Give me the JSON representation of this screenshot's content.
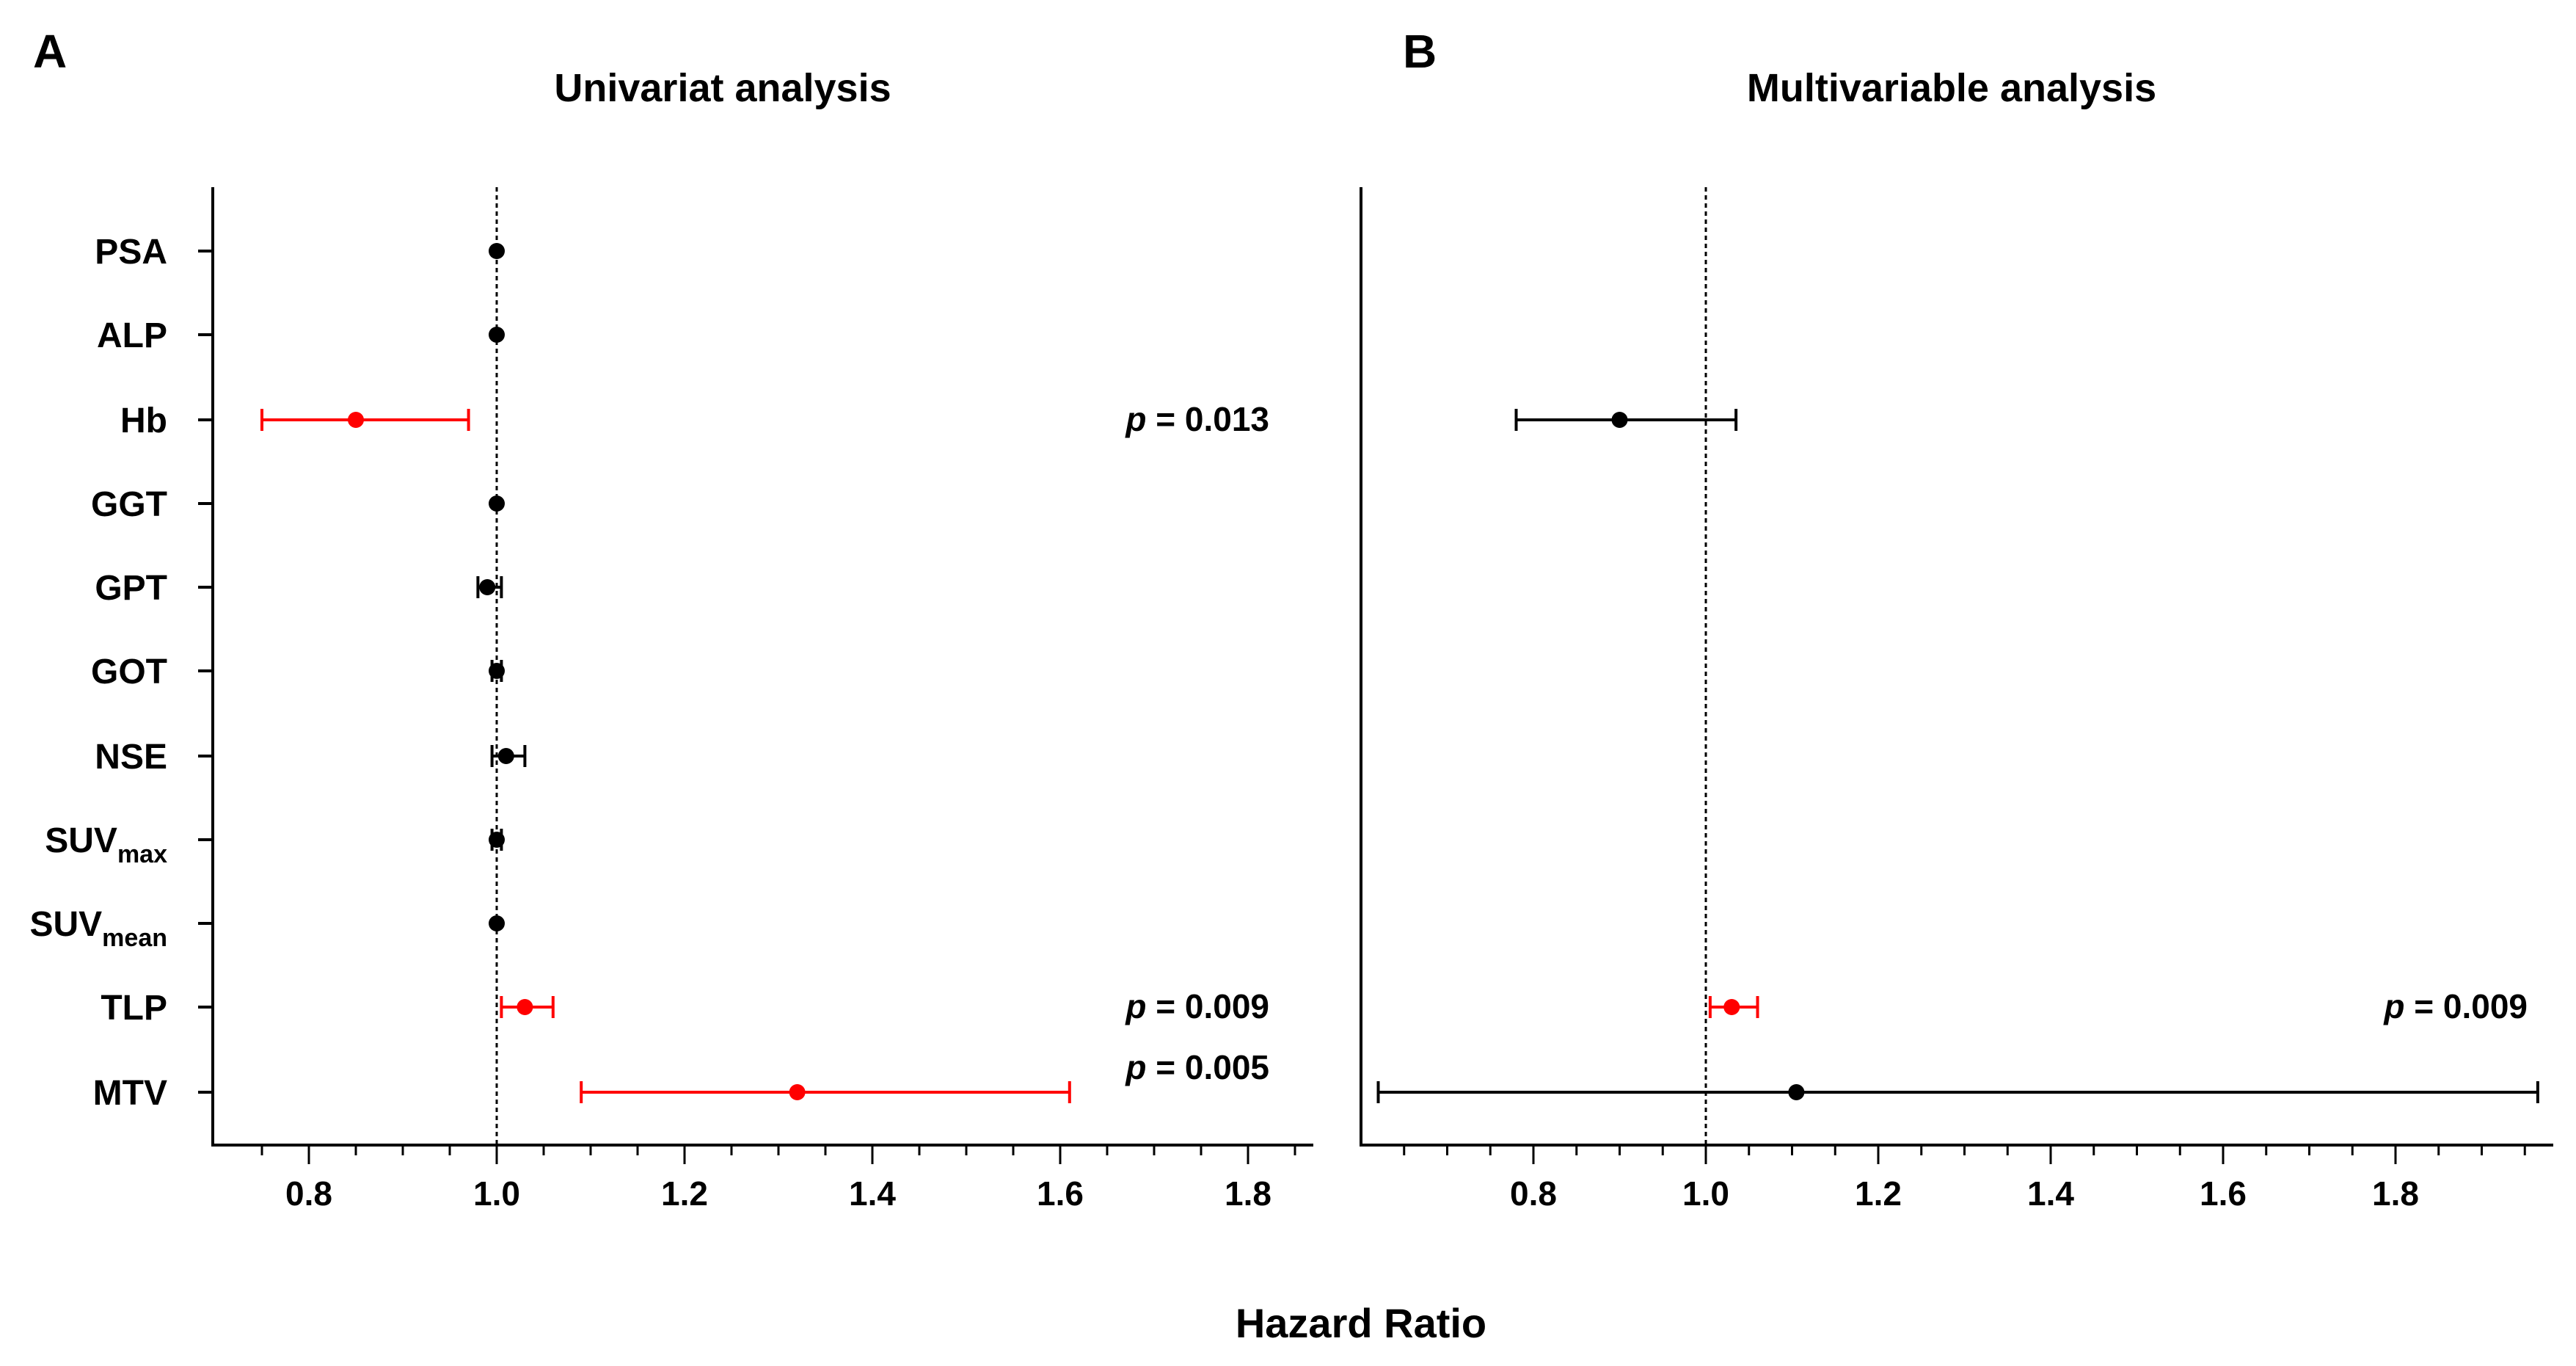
{
  "figure": {
    "xlabel": "Hazard Ratio",
    "colors": {
      "significant": "#ff0000",
      "default": "#000000"
    }
  },
  "chart_data": [
    {
      "type": "forest",
      "panel_letter": "A",
      "title": "Univariat analysis",
      "xlabel": "Hazard Ratio",
      "xlim": [
        0.7,
        1.85
      ],
      "xticks": [
        0.8,
        1.0,
        1.2,
        1.4,
        1.6,
        1.8
      ],
      "xtick_labels": [
        "0.8",
        "1.0",
        "1.2",
        "1.4",
        "1.6",
        "1.8"
      ],
      "reference_line": 1.0,
      "variables": [
        {
          "name": "PSA",
          "sub": "",
          "hr": 1.0,
          "lo": 1.0,
          "hi": 1.0,
          "significant": false,
          "p_label": ""
        },
        {
          "name": "ALP",
          "sub": "",
          "hr": 1.0,
          "lo": 1.0,
          "hi": 1.0,
          "significant": false,
          "p_label": ""
        },
        {
          "name": "Hb",
          "sub": "",
          "hr": 0.85,
          "lo": 0.75,
          "hi": 0.97,
          "significant": true,
          "p_label": "p = 0.013"
        },
        {
          "name": "GGT",
          "sub": "",
          "hr": 1.0,
          "lo": 1.0,
          "hi": 1.0,
          "significant": false,
          "p_label": ""
        },
        {
          "name": "GPT",
          "sub": "",
          "hr": 0.99,
          "lo": 0.98,
          "hi": 1.005,
          "significant": false,
          "p_label": ""
        },
        {
          "name": "GOT",
          "sub": "",
          "hr": 1.0,
          "lo": 0.995,
          "hi": 1.005,
          "significant": false,
          "p_label": ""
        },
        {
          "name": "NSE",
          "sub": "",
          "hr": 1.01,
          "lo": 0.995,
          "hi": 1.03,
          "significant": false,
          "p_label": ""
        },
        {
          "name": "SUV",
          "sub": "max",
          "hr": 1.0,
          "lo": 0.995,
          "hi": 1.005,
          "significant": false,
          "p_label": ""
        },
        {
          "name": "SUV",
          "sub": "mean",
          "hr": 1.0,
          "lo": 1.0,
          "hi": 1.0,
          "significant": false,
          "p_label": ""
        },
        {
          "name": "TLP",
          "sub": "",
          "hr": 1.03,
          "lo": 1.005,
          "hi": 1.06,
          "significant": true,
          "p_label": "p = 0.009"
        },
        {
          "name": "MTV",
          "sub": "",
          "hr": 1.32,
          "lo": 1.09,
          "hi": 1.61,
          "significant": true,
          "p_label": "p = 0.005"
        }
      ]
    },
    {
      "type": "forest",
      "panel_letter": "B",
      "title": "Multivariable analysis",
      "xlabel": "Hazard Ratio",
      "xlim": [
        0.6,
        1.98
      ],
      "xticks": [
        0.8,
        1.0,
        1.2,
        1.4,
        1.6,
        1.8
      ],
      "xtick_labels": [
        "0.8",
        "1.0",
        "1.2",
        "1.4",
        "1.6",
        "1.8"
      ],
      "reference_line": 1.0,
      "variables": [
        {
          "name": "Hb",
          "hr": 0.9,
          "lo": 0.78,
          "hi": 1.035,
          "significant": false,
          "p_label": ""
        },
        {
          "name": "TLP",
          "hr": 1.03,
          "lo": 1.005,
          "hi": 1.06,
          "significant": true,
          "p_label": "p = 0.009"
        },
        {
          "name": "MTV",
          "hr": 1.105,
          "lo": 0.62,
          "hi": 1.965,
          "significant": false,
          "p_label": ""
        }
      ]
    }
  ]
}
